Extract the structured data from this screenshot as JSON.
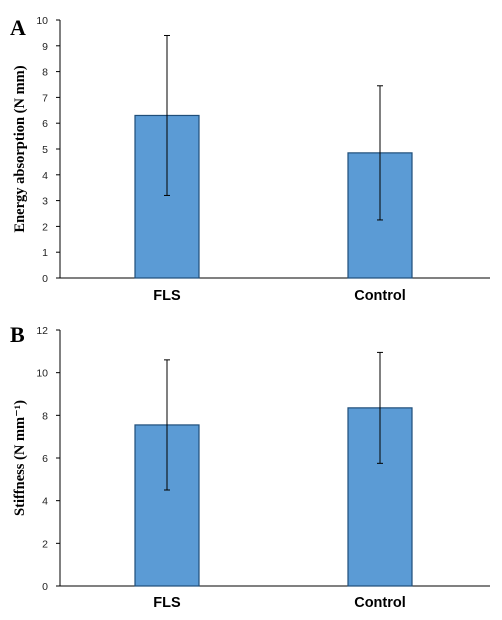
{
  "colors": {
    "bar_fill": "#5b9bd5",
    "bar_stroke": "#1f4e79",
    "axis": "#000000",
    "error_bar": "#000000"
  },
  "chart_data": [
    {
      "panel": "A",
      "type": "bar",
      "categories": [
        "FLS",
        "Control"
      ],
      "values": [
        6.3,
        4.85
      ],
      "error": [
        3.1,
        2.6
      ],
      "ylabel": "Energy absorption (N mm)",
      "ylim": [
        0,
        10
      ],
      "yticks": [
        0,
        1,
        2,
        3,
        4,
        5,
        6,
        7,
        8,
        9,
        10
      ],
      "grid": false,
      "legend": "none"
    },
    {
      "panel": "B",
      "type": "bar",
      "categories": [
        "FLS",
        "Control"
      ],
      "values": [
        7.55,
        8.35
      ],
      "error": [
        3.05,
        2.6
      ],
      "ylabel": "Stiffness (N mm⁻¹)",
      "ylim": [
        0,
        12
      ],
      "yticks": [
        0,
        2,
        4,
        6,
        8,
        10,
        12
      ],
      "grid": false,
      "legend": "none"
    }
  ]
}
